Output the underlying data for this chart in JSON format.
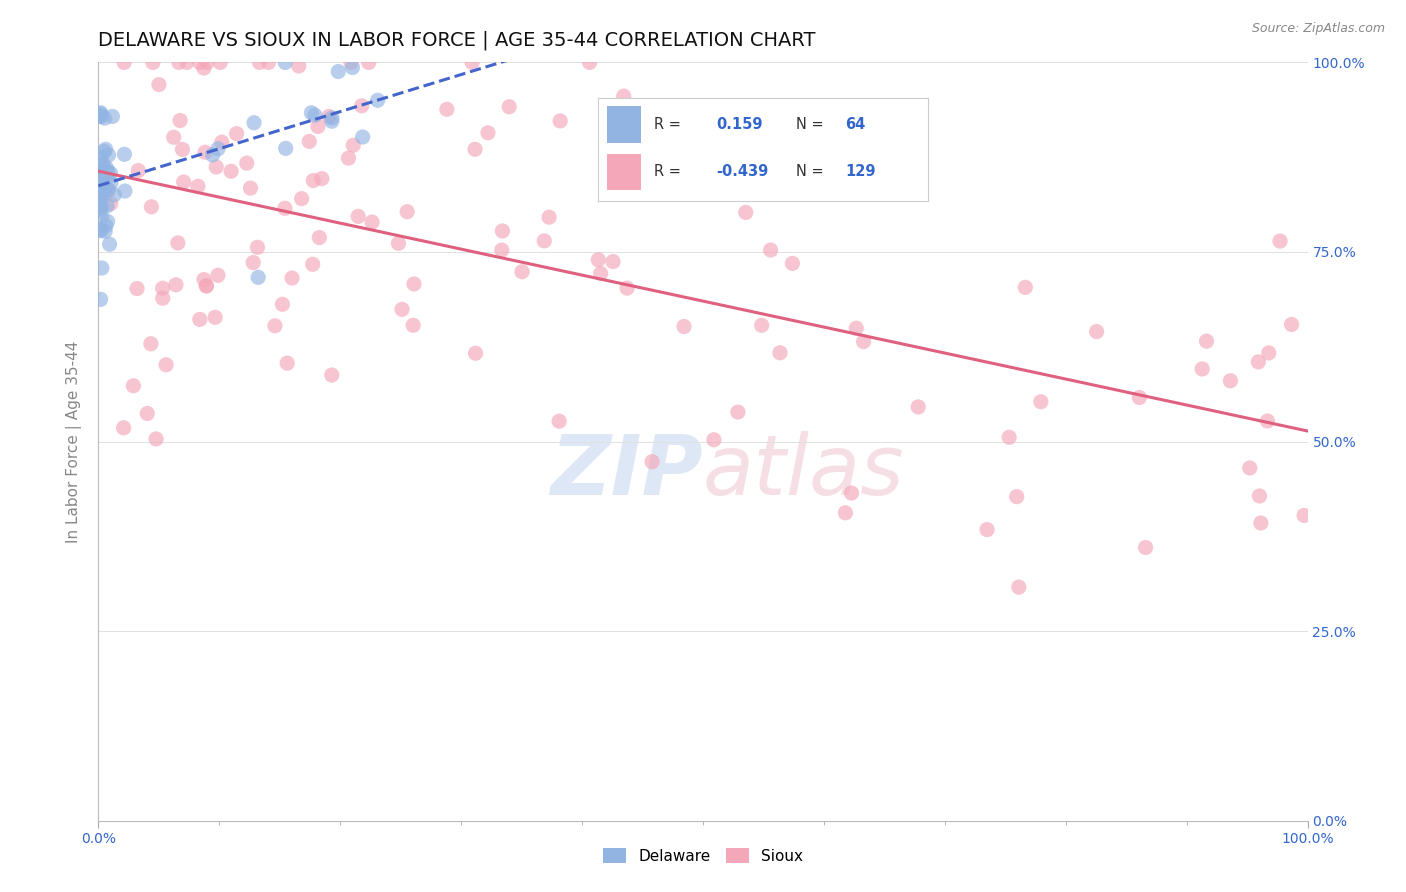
{
  "title": "DELAWARE VS SIOUX IN LABOR FORCE | AGE 35-44 CORRELATION CHART",
  "source_text": "Source: ZipAtlas.com",
  "ylabel": "In Labor Force | Age 35-44",
  "xlim": [
    0.0,
    1.0
  ],
  "ylim": [
    0.0,
    1.0
  ],
  "ytick_right_labels": [
    "0.0%",
    "25.0%",
    "50.0%",
    "75.0%",
    "100.0%"
  ],
  "ytick_right_values": [
    0.0,
    0.25,
    0.5,
    0.75,
    1.0
  ],
  "delaware_color": "#92b4e3",
  "sioux_color": "#f4a7b9",
  "delaware_R": 0.159,
  "delaware_N": 64,
  "sioux_R": -0.439,
  "sioux_N": 129,
  "legend_R_color": "#3366cc",
  "legend_label1": "Delaware",
  "legend_label2": "Sioux",
  "background_color": "#ffffff",
  "grid_color": "#e0e0e0",
  "title_fontsize": 14,
  "axis_label_fontsize": 11,
  "tick_fontsize": 10,
  "dot_size": 120,
  "dot_alpha": 0.65,
  "del_trend_color": "#4466cc",
  "sioux_trend_color": "#e06080",
  "del_trend_x0": 0.0,
  "del_trend_x1": 0.35,
  "del_trend_y0": 0.78,
  "del_trend_y1": 0.93,
  "sioux_trend_x0": 0.0,
  "sioux_trend_x1": 1.0,
  "sioux_trend_y0": 0.855,
  "sioux_trend_y1": 0.565
}
